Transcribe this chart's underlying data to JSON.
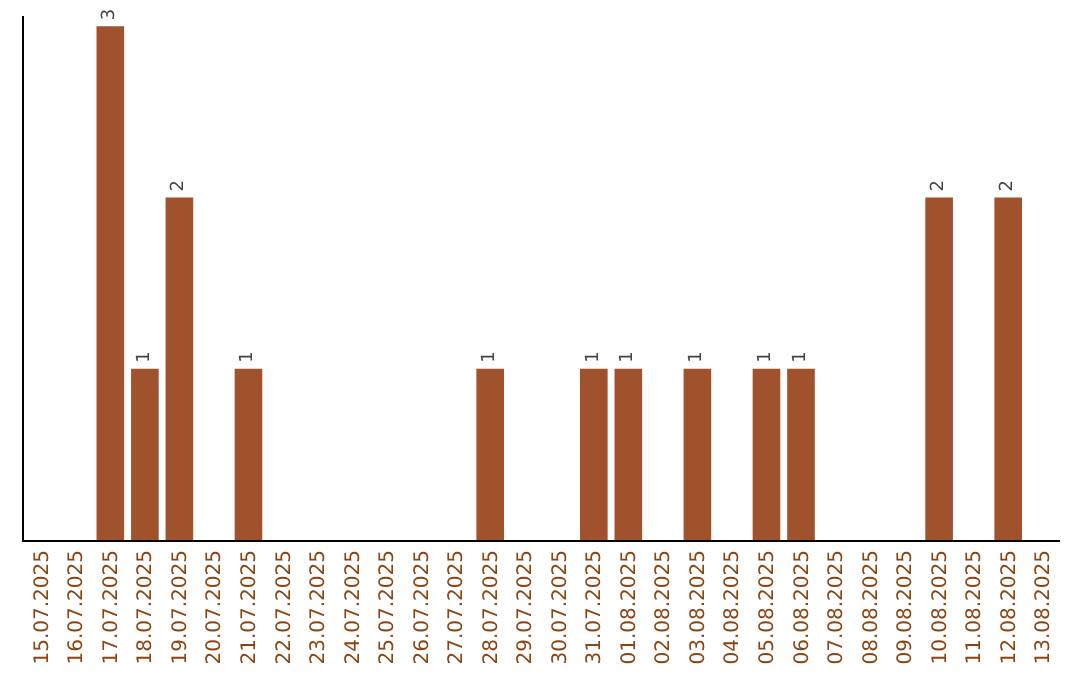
{
  "chart_data": {
    "type": "bar",
    "categories": [
      "15.07.2025",
      "16.07.2025",
      "17.07.2025",
      "18.07.2025",
      "19.07.2025",
      "20.07.2025",
      "21.07.2025",
      "22.07.2025",
      "23.07.2025",
      "24.07.2025",
      "25.07.2025",
      "26.07.2025",
      "27.07.2025",
      "28.07.2025",
      "29.07.2025",
      "30.07.2025",
      "31.07.2025",
      "01.08.2025",
      "02.08.2025",
      "03.08.2025",
      "04.08.2025",
      "05.08.2025",
      "06.08.2025",
      "07.08.2025",
      "08.08.2025",
      "09.08.2025",
      "10.08.2025",
      "11.08.2025",
      "12.08.2025",
      "13.08.2025"
    ],
    "values": [
      null,
      null,
      3,
      1,
      2,
      null,
      1,
      null,
      null,
      null,
      null,
      null,
      null,
      1,
      null,
      null,
      1,
      1,
      null,
      1,
      null,
      1,
      1,
      null,
      null,
      null,
      2,
      null,
      2,
      null
    ],
    "color": "#a0522d",
    "data_labels": true
  }
}
